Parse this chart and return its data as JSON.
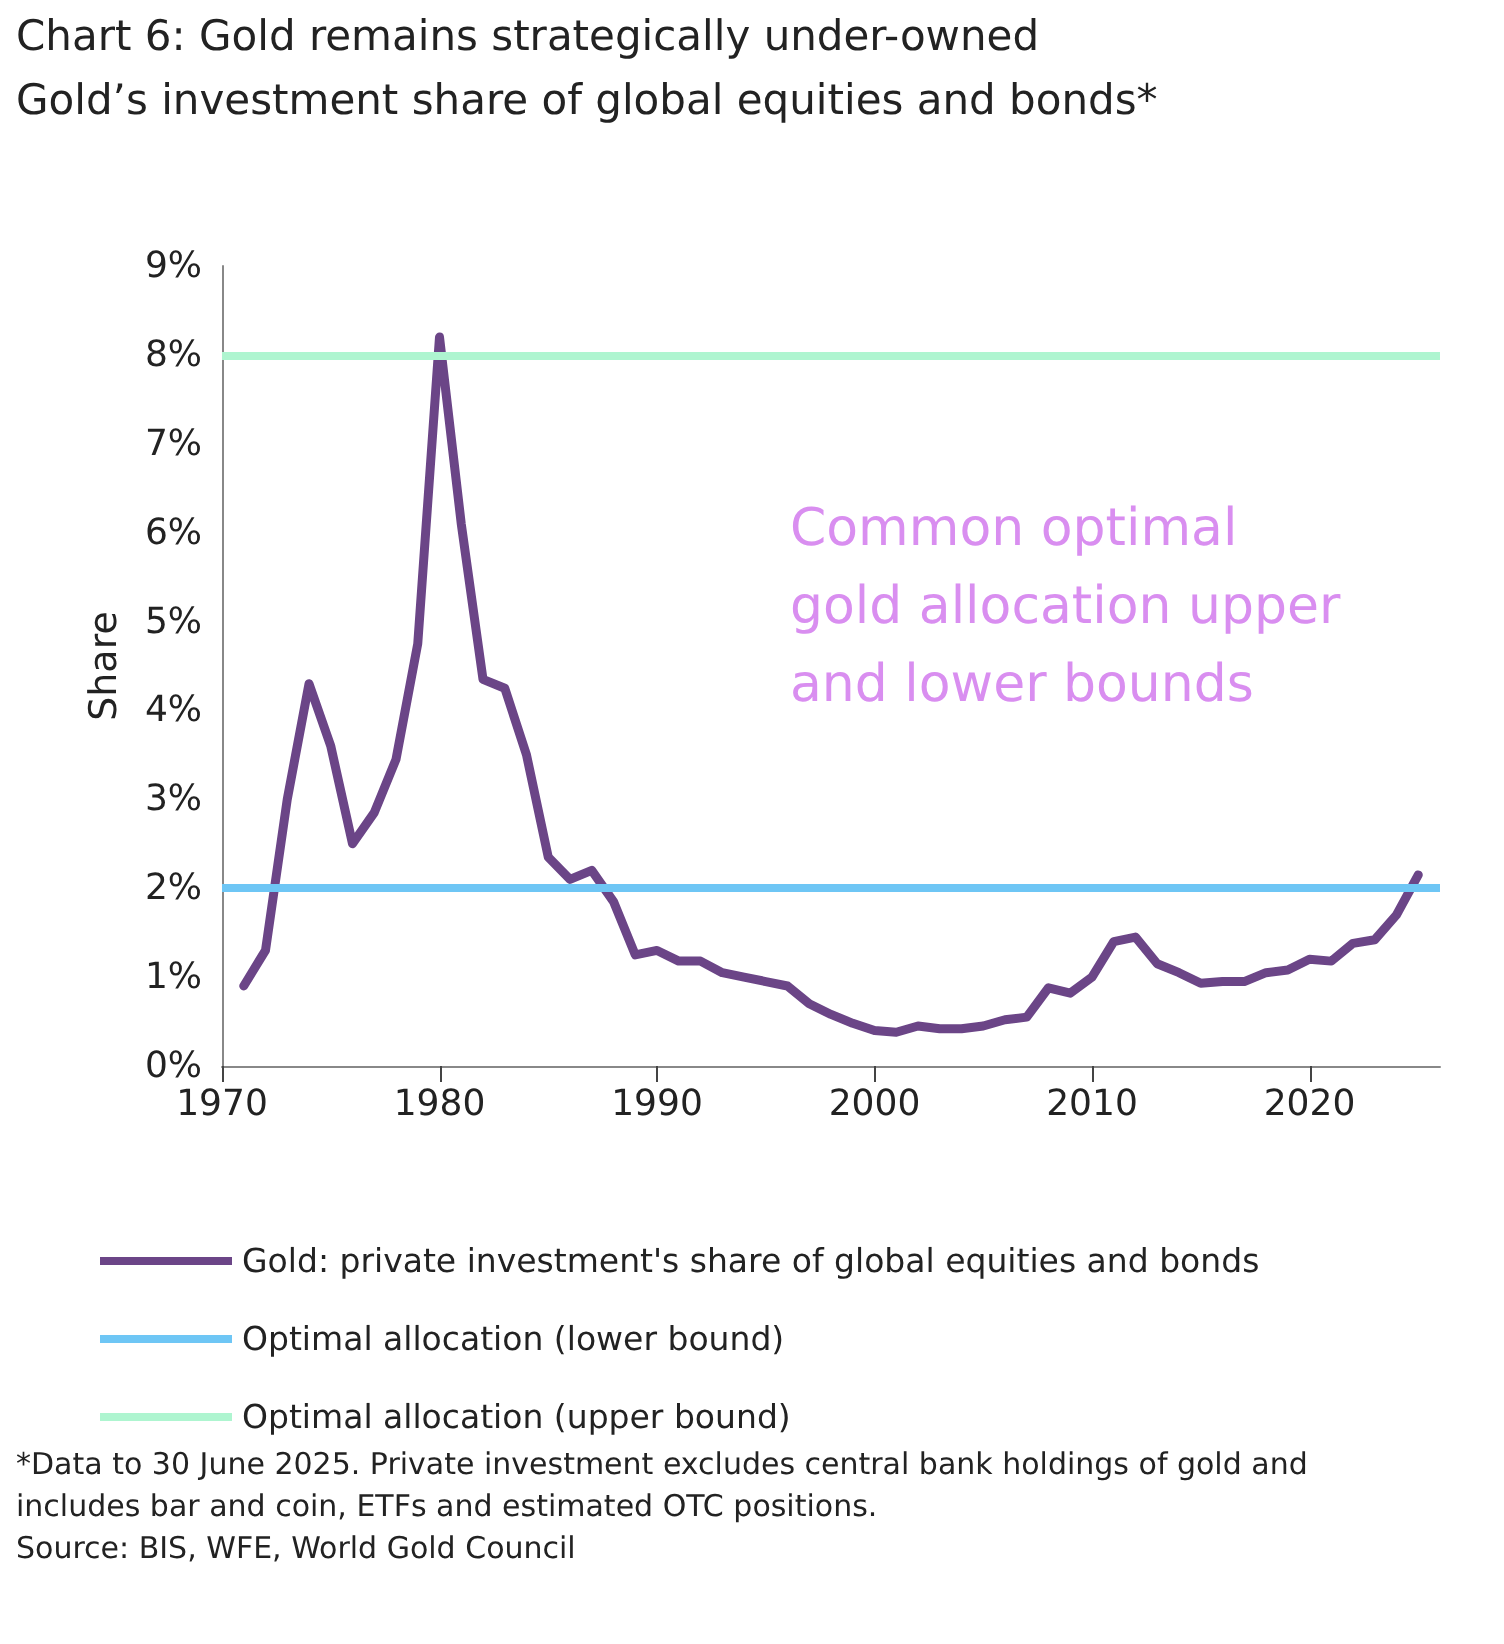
{
  "chart_data": {
    "type": "line",
    "title": "Chart 6: Gold remains strategically under-owned",
    "subtitle": "Gold’s investment share of global equities and bonds*",
    "ylabel": "Share",
    "x": [
      1971,
      1972,
      1973,
      1974,
      1975,
      1976,
      1977,
      1978,
      1979,
      1980,
      1981,
      1982,
      1983,
      1984,
      1985,
      1986,
      1987,
      1988,
      1989,
      1990,
      1991,
      1992,
      1993,
      1994,
      1995,
      1996,
      1997,
      1998,
      1999,
      2000,
      2001,
      2002,
      2003,
      2004,
      2005,
      2006,
      2007,
      2008,
      2009,
      2010,
      2011,
      2012,
      2013,
      2014,
      2015,
      2016,
      2017,
      2018,
      2019,
      2020,
      2021,
      2022,
      2023,
      2024,
      2025
    ],
    "series": [
      {
        "name": "Gold: private investment's share of global equities and bonds",
        "color": "#6b4587",
        "values": [
          0.9,
          1.3,
          3.0,
          4.3,
          3.6,
          2.5,
          2.85,
          3.45,
          4.75,
          8.2,
          6.1,
          4.35,
          4.25,
          3.5,
          2.35,
          2.1,
          2.2,
          1.85,
          1.25,
          1.3,
          1.18,
          1.18,
          1.05,
          1.0,
          0.95,
          0.9,
          0.7,
          0.58,
          0.48,
          0.4,
          0.38,
          0.45,
          0.42,
          0.42,
          0.45,
          0.52,
          0.55,
          0.88,
          0.82,
          1.0,
          1.4,
          1.45,
          1.15,
          1.05,
          0.93,
          0.95,
          0.95,
          1.05,
          1.08,
          1.2,
          1.18,
          1.38,
          1.42,
          1.7,
          2.15
        ]
      }
    ],
    "ref_lines": [
      {
        "axis": "y",
        "value": 2,
        "label": "Optimal allocation (lower bound)",
        "color": "#6ec6f5"
      },
      {
        "axis": "y",
        "value": 8,
        "label": "Optimal allocation (upper bound)",
        "color": "#aef5d0"
      }
    ],
    "xlim": [
      1970,
      2026
    ],
    "xticks": [
      1970,
      1980,
      1990,
      2000,
      2010,
      2020
    ],
    "ylim": [
      0,
      9
    ],
    "yticks": [
      {
        "value": 0,
        "label": "0%"
      },
      {
        "value": 1,
        "label": "1%"
      },
      {
        "value": 2,
        "label": "2%"
      },
      {
        "value": 3,
        "label": "3%"
      },
      {
        "value": 4,
        "label": "4%"
      },
      {
        "value": 5,
        "label": "5%"
      },
      {
        "value": 6,
        "label": "6%"
      },
      {
        "value": 7,
        "label": "7%"
      },
      {
        "value": 8,
        "label": "8%"
      },
      {
        "value": 9,
        "label": "9%"
      }
    ],
    "grid": false,
    "legend": "bottom",
    "marker": "none",
    "line_style": "solid",
    "annotations": [
      "Common optimal\ngold allocation upper\nand lower bounds",
      "*Data to 30 June 2025. Private investment excludes central bank holdings of gold and\nincludes bar and coin, ETFs and estimated OTC positions.",
      "Source: BIS, WFE, World Gold Council"
    ]
  }
}
